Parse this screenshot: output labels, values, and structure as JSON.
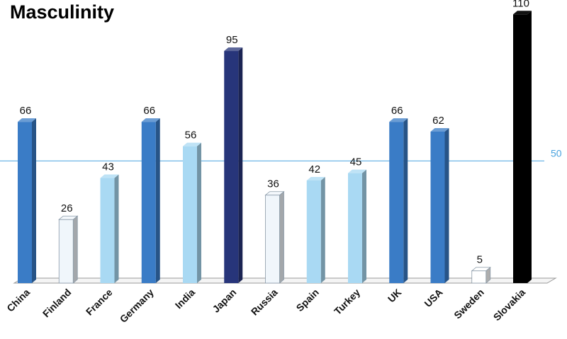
{
  "chart_data": {
    "type": "bar",
    "title": "Masculinity",
    "categories": [
      "China",
      "Finland",
      "France",
      "Germany",
      "India",
      "Japan",
      "Russia",
      "Spain",
      "Turkey",
      "UK",
      "USA",
      "Sweden",
      "Slovakia"
    ],
    "values": [
      66,
      26,
      43,
      66,
      56,
      95,
      36,
      42,
      45,
      66,
      62,
      5,
      110
    ],
    "bar_colors": [
      "#3a7cc6",
      "#f0f6fb",
      "#a9d9f3",
      "#3a7cc6",
      "#a9d9f3",
      "#27357a",
      "#f0f6fb",
      "#a9d9f3",
      "#a9d9f3",
      "#3a7cc6",
      "#3a7cc6",
      "#ffffff",
      "#000000"
    ],
    "reference_line": {
      "value": 50,
      "label": "50",
      "color": "#4aa3df"
    },
    "ylim": [
      0,
      115
    ],
    "grid": false,
    "xlabel": "",
    "ylabel": ""
  }
}
